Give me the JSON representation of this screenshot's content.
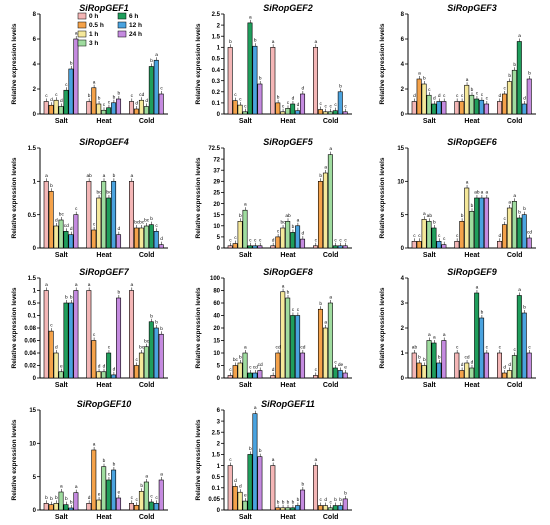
{
  "legend": [
    {
      "label": "0 h",
      "color": "#f4b6b6"
    },
    {
      "label": "0.5 h",
      "color": "#f4a24a"
    },
    {
      "label": "1 h",
      "color": "#f5e89a"
    },
    {
      "label": "3 h",
      "color": "#9fdc9f"
    },
    {
      "label": "6 h",
      "color": "#1f9e5c"
    },
    {
      "label": "12 h",
      "color": "#4aa3df"
    },
    {
      "label": "24 h",
      "color": "#c58be0"
    }
  ],
  "chart_data": [
    {
      "type": "bar",
      "title": "SiRopGEF1",
      "ylabel": "Relative expression levels",
      "categories": [
        "Salt",
        "Heat",
        "Cold"
      ],
      "ylim": [
        0,
        8
      ],
      "yticks": [
        0,
        2,
        4,
        6,
        8
      ],
      "series": [
        {
          "name": "0 h",
          "values": [
            1,
            1,
            1
          ]
        },
        {
          "name": "0.5 h",
          "values": [
            0.7,
            2.1,
            0.4
          ]
        },
        {
          "name": "1 h",
          "values": [
            1.1,
            0.8,
            1.1
          ]
        },
        {
          "name": "3 h",
          "values": [
            0.6,
            0.3,
            0.6
          ]
        },
        {
          "name": "6 h",
          "values": [
            1.9,
            0.5,
            3.8
          ]
        },
        {
          "name": "12 h",
          "values": [
            3.6,
            0.9,
            4.3
          ]
        },
        {
          "name": "24 h",
          "values": [
            6.0,
            1.2,
            1.6
          ]
        }
      ],
      "letters": [
        [
          "c",
          "d",
          "c",
          "d",
          "c",
          "b",
          "a"
        ],
        [
          "b",
          "a",
          "b",
          "c",
          "c",
          "b",
          "b"
        ],
        [
          "c",
          "d",
          "cd",
          "d",
          "b",
          "a",
          "c"
        ]
      ]
    },
    {
      "type": "bar",
      "title": "SiRopGEF2",
      "ylabel": "Relative expression levels",
      "categories": [
        "Salt",
        "Heat",
        "Cold"
      ],
      "ylim": [
        0,
        2.5
      ],
      "yticks": [
        0,
        0.1,
        0.2,
        0.3,
        0.4,
        0.5,
        1.0,
        1.5,
        2.0,
        2.5
      ],
      "series": [
        {
          "name": "0 h",
          "values": [
            1,
            1,
            1
          ]
        },
        {
          "name": "0.5 h",
          "values": [
            0.12,
            0.1,
            0.04
          ]
        },
        {
          "name": "1 h",
          "values": [
            0.08,
            0.02,
            0.02
          ]
        },
        {
          "name": "3 h",
          "values": [
            0.02,
            0.05,
            0.02
          ]
        },
        {
          "name": "6 h",
          "values": [
            2.1,
            0.09,
            0.03
          ]
        },
        {
          "name": "12 h",
          "values": [
            1.05,
            0.03,
            0.2
          ]
        },
        {
          "name": "24 h",
          "values": [
            0.27,
            0.18,
            0.02
          ]
        }
      ],
      "letters": [
        [
          "b",
          "c",
          "c",
          "c",
          "a",
          "b",
          "b"
        ],
        [
          "a",
          "b",
          "c",
          "c",
          "d",
          "d",
          "d"
        ],
        [
          "a",
          "c",
          "c",
          "c",
          "c",
          "b",
          "c"
        ]
      ]
    },
    {
      "type": "bar",
      "title": "SiRopGEF3",
      "ylabel": "Relative expression levels",
      "categories": [
        "Salt",
        "Heat",
        "Cold"
      ],
      "ylim": [
        0,
        8
      ],
      "yticks": [
        0,
        2,
        4,
        6,
        8
      ],
      "series": [
        {
          "name": "0 h",
          "values": [
            1,
            1,
            1
          ]
        },
        {
          "name": "0.5 h",
          "values": [
            2.8,
            1.0,
            1.6
          ]
        },
        {
          "name": "1 h",
          "values": [
            2.4,
            2.3,
            2.6
          ]
        },
        {
          "name": "3 h",
          "values": [
            1.5,
            1.5,
            3.5
          ]
        },
        {
          "name": "6 h",
          "values": [
            0.8,
            1.2,
            5.8
          ]
        },
        {
          "name": "12 h",
          "values": [
            1.0,
            1.1,
            0.8
          ]
        },
        {
          "name": "24 h",
          "values": [
            1.0,
            0.8,
            2.8
          ]
        }
      ],
      "letters": [
        [
          "d",
          "a",
          "b",
          "c",
          "d",
          "d",
          "c"
        ],
        [
          "c",
          "c",
          "a",
          "b",
          "c",
          "c",
          "c"
        ],
        [
          "d",
          "c",
          "b",
          "b",
          "a",
          "d",
          "b"
        ]
      ]
    },
    {
      "type": "bar",
      "title": "SiRopGEF4",
      "ylabel": "Relative expression levels",
      "categories": [
        "Salt",
        "Heat",
        "Cold"
      ],
      "ylim": [
        0,
        1.5
      ],
      "yticks": [
        0,
        0.5,
        1.0,
        1.5
      ],
      "series": [
        {
          "name": "0 h",
          "values": [
            1,
            1,
            1
          ]
        },
        {
          "name": "0.5 h",
          "values": [
            0.85,
            0.27,
            0.3
          ]
        },
        {
          "name": "1 h",
          "values": [
            0.33,
            0.75,
            0.3
          ]
        },
        {
          "name": "3 h",
          "values": [
            0.42,
            1.0,
            0.33
          ]
        },
        {
          "name": "6 h",
          "values": [
            0.25,
            0.75,
            0.35
          ]
        },
        {
          "name": "12 h",
          "values": [
            0.2,
            1.0,
            0.25
          ]
        },
        {
          "name": "24 h",
          "values": [
            0.5,
            0.2,
            0.05
          ]
        }
      ],
      "letters": [
        [
          "a",
          "b",
          "d",
          "bc",
          "cd",
          "d",
          "c"
        ],
        [
          "ab",
          "c",
          "bc",
          "a",
          "bc",
          "b",
          "d"
        ],
        [
          "a",
          "bc",
          "bc",
          "bc",
          "b",
          "c",
          "d"
        ]
      ]
    },
    {
      "type": "bar",
      "title": "SiRopGEF5",
      "ylabel": "Relative expression levels",
      "categories": [
        "Salt",
        "Heat",
        "Cold"
      ],
      "ylim": [
        0,
        72.5
      ],
      "yticks": [
        0,
        5,
        10,
        15,
        20,
        25,
        29,
        37,
        72.0,
        72.5
      ],
      "series": [
        {
          "name": "0 h",
          "values": [
            1,
            1,
            1
          ]
        },
        {
          "name": "0.5 h",
          "values": [
            2,
            5,
            29
          ]
        },
        {
          "name": "1 h",
          "values": [
            12,
            9,
            35
          ]
        },
        {
          "name": "3 h",
          "values": [
            17,
            12,
            72.2
          ]
        },
        {
          "name": "6 h",
          "values": [
            1,
            7,
            1
          ]
        },
        {
          "name": "12 h",
          "values": [
            1,
            10,
            1
          ]
        },
        {
          "name": "24 h",
          "values": [
            1,
            4,
            1
          ]
        }
      ],
      "letters": [
        [
          "c",
          "c",
          "b",
          "a",
          "c",
          "c",
          "c"
        ],
        [
          "d",
          "c",
          "bc",
          "ab",
          "b",
          "a",
          "d"
        ],
        [
          "c",
          "b",
          "a",
          "a",
          "c",
          "c",
          "c"
        ]
      ]
    },
    {
      "type": "bar",
      "title": "SiRopGEF6",
      "ylabel": "Relative expression levels",
      "categories": [
        "Salt",
        "Heat",
        "Cold"
      ],
      "ylim": [
        0,
        15
      ],
      "yticks": [
        0,
        5,
        10,
        15
      ],
      "series": [
        {
          "name": "0 h",
          "values": [
            1,
            1,
            1
          ]
        },
        {
          "name": "0.5 h",
          "values": [
            1.0,
            4.0,
            3.5
          ]
        },
        {
          "name": "1 h",
          "values": [
            4.3,
            9.0,
            6.0
          ]
        },
        {
          "name": "3 h",
          "values": [
            4.0,
            5.5,
            7.0
          ]
        },
        {
          "name": "6 h",
          "values": [
            3.0,
            7.5,
            4.5
          ]
        },
        {
          "name": "12 h",
          "values": [
            1.0,
            7.5,
            5.0
          ]
        },
        {
          "name": "24 h",
          "values": [
            0.5,
            7.5,
            1.5
          ]
        }
      ],
      "letters": [
        [
          "c",
          "c",
          "a",
          "ab",
          "b",
          "c",
          "c"
        ],
        [
          "c",
          "b",
          "a",
          "b",
          "ab",
          "a",
          "a"
        ],
        [
          "d",
          "c",
          "a",
          "a",
          "b",
          "b",
          "cd"
        ]
      ]
    },
    {
      "type": "bar",
      "title": "SiRopGEF7",
      "ylabel": "Relative expression levels",
      "categories": [
        "Salt",
        "Heat",
        "Cold"
      ],
      "ylim": [
        0,
        1.5
      ],
      "yticks": [
        0,
        0.02,
        0.04,
        0.06,
        0.08,
        0.1,
        0.5,
        1.0,
        1.5
      ],
      "series": [
        {
          "name": "0 h",
          "values": [
            1,
            1,
            1
          ]
        },
        {
          "name": "0.5 h",
          "values": [
            0.075,
            0.06,
            0.02
          ]
        },
        {
          "name": "1 h",
          "values": [
            0.04,
            0.01,
            0.04
          ]
        },
        {
          "name": "3 h",
          "values": [
            0.01,
            0.01,
            0.05
          ]
        },
        {
          "name": "6 h",
          "values": [
            0.5,
            0.04,
            0.09
          ]
        },
        {
          "name": "12 h",
          "values": [
            0.5,
            0.005,
            0.08
          ]
        },
        {
          "name": "24 h",
          "values": [
            1.0,
            0.7,
            0.07
          ]
        }
      ],
      "letters": [
        [
          "a",
          "c",
          "d",
          "e",
          "b",
          "b",
          "a"
        ],
        [
          "a",
          "c",
          "d",
          "d",
          "c",
          "d",
          "b"
        ],
        [
          "a",
          "c",
          "bc",
          "bc",
          "b",
          "b",
          "b"
        ]
      ]
    },
    {
      "type": "bar",
      "title": "SiRopGEF8",
      "ylabel": "Relative expression levels",
      "categories": [
        "Salt",
        "Heat",
        "Cold"
      ],
      "ylim": [
        0,
        100
      ],
      "yticks": [
        0,
        5,
        10,
        15,
        20,
        40,
        60,
        80,
        100
      ],
      "series": [
        {
          "name": "0 h",
          "values": [
            1,
            1,
            1
          ]
        },
        {
          "name": "0.5 h",
          "values": [
            5,
            10,
            50
          ]
        },
        {
          "name": "1 h",
          "values": [
            6,
            78,
            20
          ]
        },
        {
          "name": "3 h",
          "values": [
            10,
            68,
            60
          ]
        },
        {
          "name": "6 h",
          "values": [
            2,
            40,
            4
          ]
        },
        {
          "name": "12 h",
          "values": [
            2,
            40,
            3
          ]
        },
        {
          "name": "24 h",
          "values": [
            3,
            10,
            2
          ]
        }
      ],
      "letters": [
        [
          "c",
          "bc",
          "b",
          "a",
          "c",
          "cd",
          "cd"
        ],
        [
          "d",
          "cd",
          "a",
          "b",
          "c",
          "c",
          "cd"
        ],
        [
          "c",
          "b",
          "a",
          "a",
          "c",
          "de",
          "e"
        ]
      ]
    },
    {
      "type": "bar",
      "title": "SiRopGEF9",
      "ylabel": "Relative expression levels",
      "categories": [
        "Salt",
        "Heat",
        "Cold"
      ],
      "ylim": [
        0,
        4
      ],
      "yticks": [
        0,
        1,
        2,
        3,
        4
      ],
      "series": [
        {
          "name": "0 h",
          "values": [
            1,
            1,
            1
          ]
        },
        {
          "name": "0.5 h",
          "values": [
            0.6,
            0.3,
            0.2
          ]
        },
        {
          "name": "1 h",
          "values": [
            0.5,
            0.6,
            0.3
          ]
        },
        {
          "name": "3 h",
          "values": [
            1.5,
            0.4,
            0.9
          ]
        },
        {
          "name": "6 h",
          "values": [
            1.4,
            3.4,
            3.3
          ]
        },
        {
          "name": "12 h",
          "values": [
            0.6,
            2.4,
            2.6
          ]
        },
        {
          "name": "24 h",
          "values": [
            1.5,
            1.0,
            1.0
          ]
        }
      ],
      "letters": [
        [
          "ab",
          "b",
          "b",
          "a",
          "a",
          "b",
          "a"
        ],
        [
          "c",
          "d",
          "cd",
          "d",
          "a",
          "b",
          "c"
        ],
        [
          "c",
          "d",
          "d",
          "c",
          "a",
          "b",
          "c"
        ]
      ]
    },
    {
      "type": "bar",
      "title": "SiRopGEF10",
      "ylabel": "Relative expression levels",
      "categories": [
        "Salt",
        "Heat",
        "Cold"
      ],
      "ylim": [
        0,
        15
      ],
      "yticks": [
        0,
        5,
        10,
        15
      ],
      "series": [
        {
          "name": "0 h",
          "values": [
            1,
            1,
            1
          ]
        },
        {
          "name": "0.5 h",
          "values": [
            0.8,
            9.0,
            0.7
          ]
        },
        {
          "name": "1 h",
          "values": [
            1.0,
            1.5,
            2.8
          ]
        },
        {
          "name": "3 h",
          "values": [
            2.7,
            6.5,
            4.2
          ]
        },
        {
          "name": "6 h",
          "values": [
            0.8,
            4.5,
            1.2
          ]
        },
        {
          "name": "12 h",
          "values": [
            0.3,
            6.0,
            1.0
          ]
        },
        {
          "name": "24 h",
          "values": [
            2.6,
            1.8,
            4.5
          ]
        }
      ],
      "letters": [
        [
          "b",
          "b",
          "b",
          "a",
          "b",
          "b",
          "a"
        ],
        [
          "d",
          "a",
          "e",
          "b",
          "c",
          "b",
          "e"
        ],
        [
          "c",
          "c",
          "b",
          "a",
          "c",
          "c",
          "a"
        ]
      ]
    },
    {
      "type": "bar",
      "title": "SiRopGEF11",
      "ylabel": "Relative expression levels",
      "categories": [
        "Salt",
        "Heat",
        "Cold"
      ],
      "ylim": [
        0,
        6.0
      ],
      "yticks": [
        0,
        0.05,
        0.1,
        0.5,
        1.0,
        1.5,
        2.0,
        2.5,
        3.0,
        6.0
      ],
      "series": [
        {
          "name": "0 h",
          "values": [
            1,
            1,
            1
          ]
        },
        {
          "name": "0.5 h",
          "values": [
            0.15,
            0.01,
            0.02
          ]
        },
        {
          "name": "1 h",
          "values": [
            0.08,
            0.01,
            0.02
          ]
        },
        {
          "name": "3 h",
          "values": [
            0.04,
            0.01,
            0.01
          ]
        },
        {
          "name": "6 h",
          "values": [
            1.5,
            0.01,
            0.02
          ]
        },
        {
          "name": "12 h",
          "values": [
            5.0,
            0.02,
            0.02
          ]
        },
        {
          "name": "24 h",
          "values": [
            1.4,
            0.09,
            0.05
          ]
        }
      ],
      "letters": [
        [
          "c",
          "d",
          "d",
          "e",
          "b",
          "a",
          "b"
        ],
        [
          "a",
          "b",
          "b",
          "b",
          "b",
          "b",
          "b"
        ],
        [
          "a",
          "c",
          "d",
          "c",
          "b",
          "b",
          "b"
        ]
      ]
    }
  ]
}
